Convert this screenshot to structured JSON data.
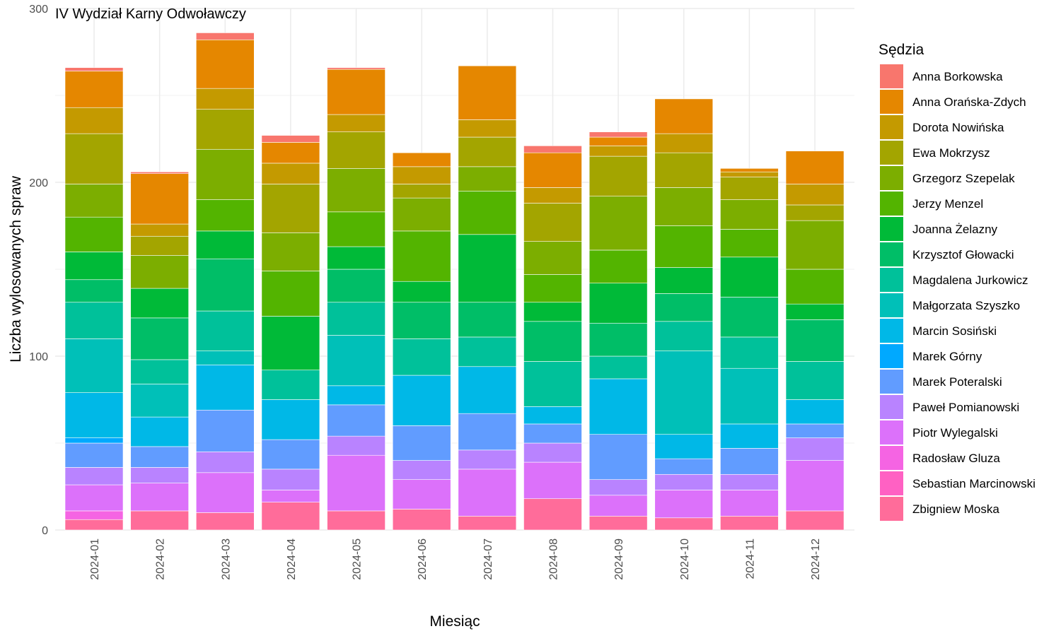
{
  "chart_data": {
    "type": "bar",
    "stacked": true,
    "title": "IV Wydział Karny Odwoławczy",
    "xlabel": "Miesiąc",
    "ylabel": "Liczba wylosowanych spraw",
    "ylim": [
      0,
      300
    ],
    "yticks": [
      0,
      100,
      200,
      300
    ],
    "grid": true,
    "legend_title": "Sędzia",
    "legend_position": "right",
    "categories": [
      "2024-01",
      "2024-02",
      "2024-03",
      "2024-04",
      "2024-05",
      "2024-06",
      "2024-07",
      "2024-08",
      "2024-09",
      "2024-10",
      "2024-11",
      "2024-12"
    ],
    "series": [
      {
        "name": "Zbigniew Moska",
        "color": "#FF6C9A",
        "values": [
          6,
          11,
          10,
          16,
          11,
          12,
          8,
          18,
          8,
          7,
          8,
          11
        ]
      },
      {
        "name": "Sebastian Marcinowski",
        "color": "#FF61C3",
        "values": [
          0,
          0,
          0,
          0,
          0,
          0,
          0,
          0,
          0,
          0,
          0,
          0
        ]
      },
      {
        "name": "Radosław Gluza",
        "color": "#F564E3",
        "values": [
          5,
          0,
          0,
          0,
          0,
          0,
          0,
          0,
          0,
          0,
          0,
          0
        ]
      },
      {
        "name": "Piotr Wylegalski",
        "color": "#DC71FA",
        "values": [
          15,
          16,
          23,
          7,
          32,
          17,
          27,
          21,
          12,
          16,
          15,
          29
        ]
      },
      {
        "name": "Paweł Pomianowski",
        "color": "#B983FF",
        "values": [
          10,
          9,
          12,
          12,
          11,
          11,
          11,
          11,
          9,
          9,
          9,
          13
        ]
      },
      {
        "name": "Marek Poteralski",
        "color": "#619CFF",
        "values": [
          14,
          12,
          24,
          17,
          18,
          20,
          21,
          11,
          26,
          9,
          15,
          8
        ]
      },
      {
        "name": "Marek Górny",
        "color": "#00A9FF",
        "values": [
          3,
          0,
          0,
          0,
          0,
          0,
          0,
          0,
          0,
          0,
          0,
          0
        ]
      },
      {
        "name": "Marcin Sosiński",
        "color": "#00B8E7",
        "values": [
          26,
          17,
          26,
          23,
          11,
          29,
          27,
          10,
          32,
          14,
          14,
          14
        ]
      },
      {
        "name": "Małgorzata Szyszko",
        "color": "#00C0B8",
        "values": [
          31,
          19,
          8,
          0,
          29,
          0,
          0,
          0,
          0,
          48,
          32,
          0
        ]
      },
      {
        "name": "Magdalena Jurkowicz",
        "color": "#00C19A",
        "values": [
          21,
          14,
          23,
          17,
          19,
          21,
          17,
          26,
          13,
          17,
          18,
          22
        ]
      },
      {
        "name": "Krzysztof Głowacki",
        "color": "#00BE67",
        "values": [
          13,
          24,
          30,
          0,
          19,
          21,
          20,
          23,
          19,
          16,
          23,
          24
        ]
      },
      {
        "name": "Joanna Żelazny",
        "color": "#00BA38",
        "values": [
          16,
          17,
          16,
          31,
          13,
          12,
          39,
          11,
          23,
          15,
          23,
          9
        ]
      },
      {
        "name": "Jerzy Menzel",
        "color": "#53B400",
        "values": [
          20,
          0,
          18,
          26,
          20,
          29,
          25,
          16,
          19,
          24,
          16,
          20
        ]
      },
      {
        "name": "Grzegorz Szepelak",
        "color": "#7CAE00",
        "values": [
          19,
          19,
          29,
          22,
          25,
          19,
          14,
          19,
          31,
          22,
          17,
          28
        ]
      },
      {
        "name": "Ewa Mokrzysz",
        "color": "#A3A500",
        "values": [
          29,
          11,
          23,
          28,
          21,
          8,
          17,
          22,
          23,
          20,
          13,
          9
        ]
      },
      {
        "name": "Dorota Nowińska",
        "color": "#C49A00",
        "values": [
          15,
          7,
          12,
          12,
          10,
          10,
          10,
          9,
          6,
          11,
          3,
          12
        ]
      },
      {
        "name": "Anna Orańska-Zdych",
        "color": "#E58700",
        "values": [
          21,
          29,
          28,
          12,
          26,
          8,
          31,
          20,
          5,
          20,
          2,
          19
        ]
      },
      {
        "name": "Anna Borkowska",
        "color": "#F8766D",
        "values": [
          2,
          1,
          4,
          4,
          1,
          0,
          0,
          4,
          3,
          0,
          0,
          0
        ]
      }
    ]
  }
}
